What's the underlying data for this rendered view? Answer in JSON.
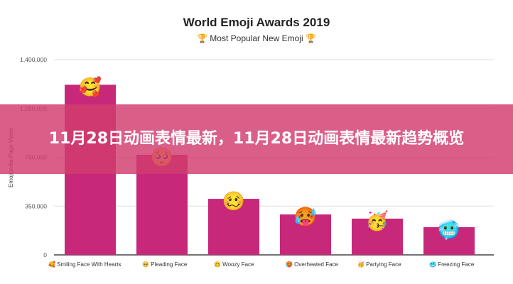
{
  "chart_data": {
    "type": "bar",
    "title": "World Emoji Awards 2019",
    "subtitle": "🏆 Most Popular New Emoji 🏆",
    "ylabel": "Emojipedia Page Views",
    "xlabel": "",
    "ylim": [
      0,
      1400000
    ],
    "yticks": [
      "0",
      "350,000",
      "700,000",
      "1,050,000",
      "1,400,000"
    ],
    "ytick_values": [
      0,
      350000,
      700000,
      1050000,
      1400000
    ],
    "grid": true,
    "categories": [
      "Smiling Face With Hearts",
      "Pleading Face",
      "Woozy Face",
      "Overheated Face",
      "Partying Face",
      "Freezing Face"
    ],
    "emojis": [
      "🥰",
      "🥺",
      "🥴",
      "🥵",
      "🥳",
      "🥶"
    ],
    "values": [
      1220000,
      718000,
      402000,
      290000,
      260000,
      199000
    ],
    "bar_color": "#c8287a"
  },
  "banner": {
    "text": "11月28日动画表情最新，11月28日动画表情最新趋势概览",
    "color": "#d23c6e"
  }
}
